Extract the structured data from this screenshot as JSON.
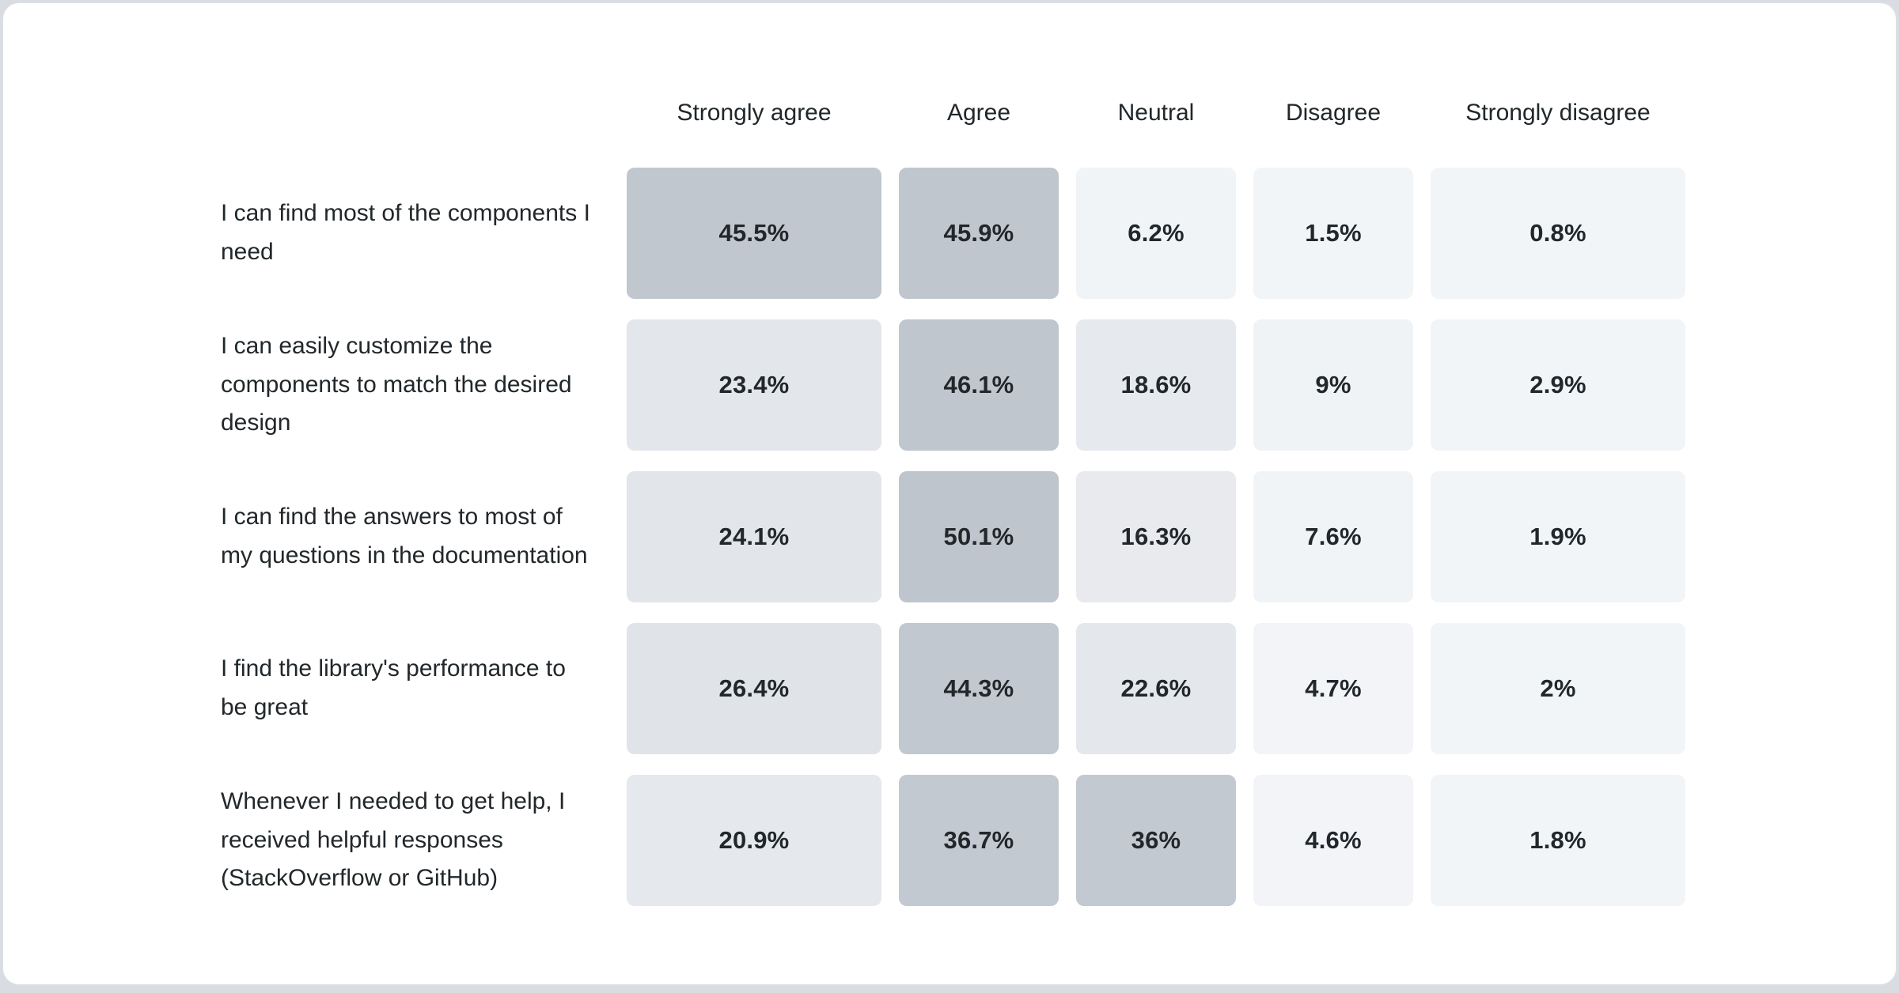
{
  "page": {
    "background_color": "#d9dde2",
    "card_background": "#ffffff",
    "card_border_color": "#dbdfe3",
    "text_color": "#21272a"
  },
  "chart_data": {
    "type": "heatmap",
    "legend": "none",
    "grid": "off",
    "unit": "%",
    "value_range": [
      0,
      50.1
    ],
    "color_scale": {
      "light": "#f3f6f9",
      "dark": "#bfc5cd"
    },
    "columns": [
      "Strongly agree",
      "Agree",
      "Neutral",
      "Disagree",
      "Strongly disagree"
    ],
    "rows": [
      {
        "label": "I can find most of the components I need",
        "values": [
          45.5,
          45.9,
          6.2,
          1.5,
          0.8
        ],
        "cells": [
          {
            "display": "45.5%",
            "color": "#c1c7cf"
          },
          {
            "display": "45.9%",
            "color": "#c0c6ce"
          },
          {
            "display": "6.2%",
            "color": "#f1f4f7"
          },
          {
            "display": "1.5%",
            "color": "#f2f5f8"
          },
          {
            "display": "0.8%",
            "color": "#f2f5f8"
          }
        ]
      },
      {
        "label": "I can easily customize the components to match the desired design",
        "values": [
          23.4,
          46.1,
          18.6,
          9,
          2.9
        ],
        "cells": [
          {
            "display": "23.4%",
            "color": "#e3e6ea"
          },
          {
            "display": "46.1%",
            "color": "#c0c6ce"
          },
          {
            "display": "18.6%",
            "color": "#e6e9ed"
          },
          {
            "display": "9%",
            "color": "#f0f3f6"
          },
          {
            "display": "2.9%",
            "color": "#f2f5f8"
          }
        ]
      },
      {
        "label": "I can find the answers to most of my questions in the documentation",
        "values": [
          24.1,
          50.1,
          16.3,
          7.6,
          1.9
        ],
        "cells": [
          {
            "display": "24.1%",
            "color": "#e2e5e9"
          },
          {
            "display": "50.1%",
            "color": "#bfc5cd"
          },
          {
            "display": "16.3%",
            "color": "#e8eaee"
          },
          {
            "display": "7.6%",
            "color": "#f1f4f6"
          },
          {
            "display": "1.9%",
            "color": "#f2f5f8"
          }
        ]
      },
      {
        "label": "I find the library's performance to be great",
        "values": [
          26.4,
          44.3,
          22.6,
          4.7,
          2
        ],
        "cells": [
          {
            "display": "26.4%",
            "color": "#e0e4e8"
          },
          {
            "display": "44.3%",
            "color": "#c2c8d0"
          },
          {
            "display": "22.6%",
            "color": "#e4e7eb"
          },
          {
            "display": "4.7%",
            "color": "#f2f4f7"
          },
          {
            "display": "2%",
            "color": "#f2f5f8"
          }
        ]
      },
      {
        "label": "Whenever I needed to get help, I received helpful responses (StackOverflow or GitHub)",
        "values": [
          20.9,
          36.7,
          36,
          4.6,
          1.8
        ],
        "cells": [
          {
            "display": "20.9%",
            "color": "#e5e8ec"
          },
          {
            "display": "36.7%",
            "color": "#c3c9d1"
          },
          {
            "display": "36%",
            "color": "#c3c9d1"
          },
          {
            "display": "4.6%",
            "color": "#f2f4f7"
          },
          {
            "display": "1.8%",
            "color": "#f2f5f8"
          }
        ]
      }
    ]
  }
}
